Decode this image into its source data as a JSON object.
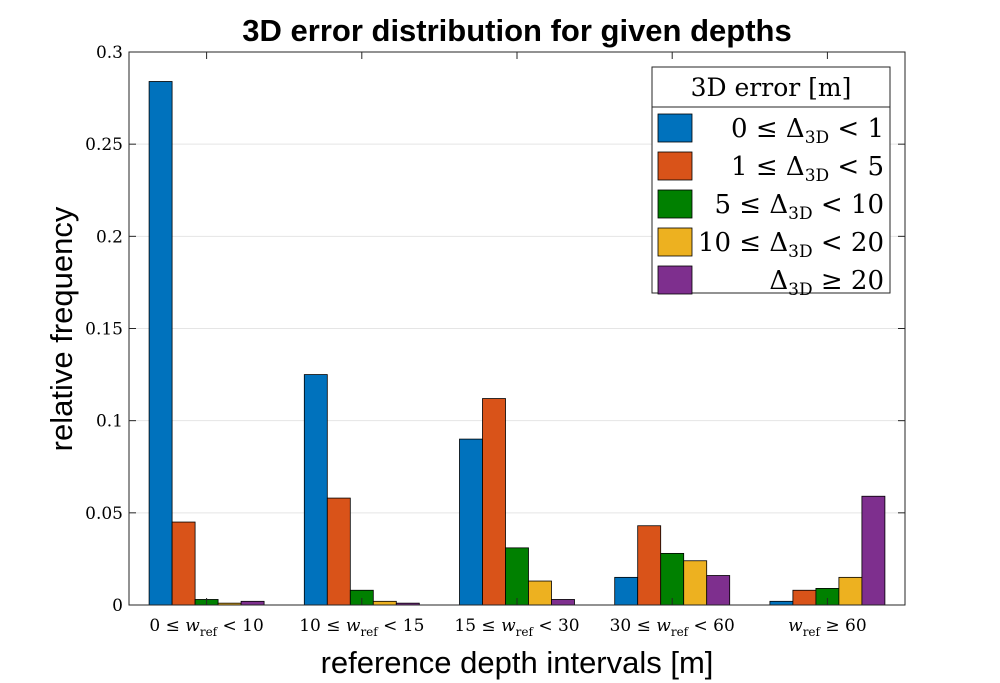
{
  "chart_data": {
    "type": "bar",
    "title": "3D error distribution for given depths",
    "xlabel": "reference depth intervals [m]",
    "ylabel": "relative frequency",
    "ylim": [
      0,
      0.3
    ],
    "yticks": [
      "0",
      "0.05",
      "0.1",
      "0.15",
      "0.2",
      "0.25",
      "0.3"
    ],
    "ytick_values": [
      0,
      0.05,
      0.1,
      0.15,
      0.2,
      0.25,
      0.3
    ],
    "grid": true,
    "categories": [
      {
        "pre": "0 ≤ ",
        "var": "w",
        "sub": "ref",
        "post": " < 10"
      },
      {
        "pre": "10 ≤ ",
        "var": "w",
        "sub": "ref",
        "post": " < 15"
      },
      {
        "pre": "15 ≤ ",
        "var": "w",
        "sub": "ref",
        "post": " < 30"
      },
      {
        "pre": "30 ≤ ",
        "var": "w",
        "sub": "ref",
        "post": " < 60"
      },
      {
        "pre": "",
        "var": "w",
        "sub": "ref",
        "post": " ≥ 60"
      }
    ],
    "legend": {
      "title": "3D error [m]",
      "placement": "top-right"
    },
    "series": [
      {
        "pre": "0 ≤ ",
        "sym": "Δ",
        "sub": "3D",
        "post": " < 1",
        "color": "#0072BD",
        "values": [
          0.284,
          0.125,
          0.09,
          0.015,
          0.002
        ]
      },
      {
        "pre": "1 ≤ ",
        "sym": "Δ",
        "sub": "3D",
        "post": " < 5",
        "color": "#D95319",
        "values": [
          0.045,
          0.058,
          0.112,
          0.043,
          0.008
        ]
      },
      {
        "pre": "5 ≤ ",
        "sym": "Δ",
        "sub": "3D",
        "post": " < 10",
        "color": "#008000",
        "values": [
          0.003,
          0.008,
          0.031,
          0.028,
          0.009
        ]
      },
      {
        "pre": "10 ≤ ",
        "sym": "Δ",
        "sub": "3D",
        "post": " < 20",
        "color": "#EDB120",
        "values": [
          0.001,
          0.002,
          0.013,
          0.024,
          0.015
        ]
      },
      {
        "pre": "",
        "sym": "Δ",
        "sub": "3D",
        "post": " ≥ 20",
        "color": "#7E2F8E",
        "values": [
          0.002,
          0.001,
          0.003,
          0.016,
          0.059
        ]
      }
    ]
  }
}
